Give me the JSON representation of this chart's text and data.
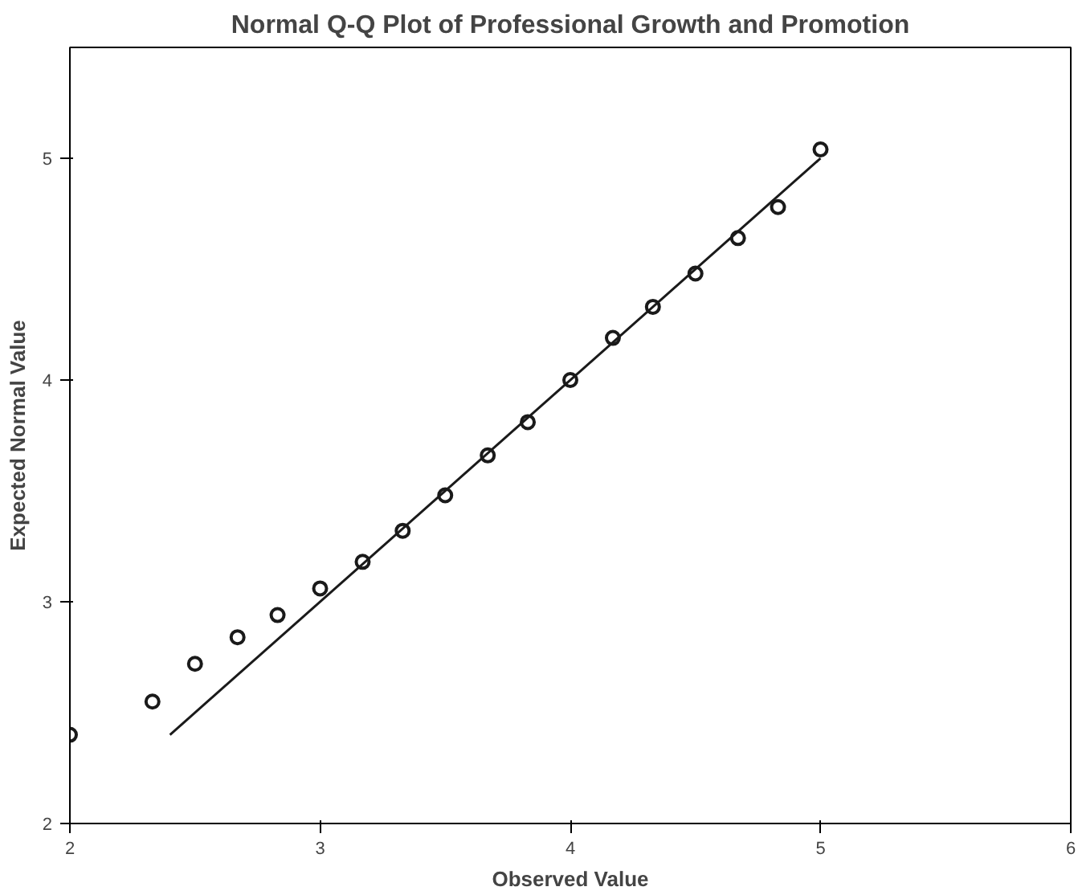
{
  "chart_data": {
    "type": "scatter",
    "title": "Normal Q-Q Plot of Professional Growth and Promotion",
    "xlabel": "Observed Value",
    "ylabel": "Expected Normal Value",
    "xlim": [
      2,
      6
    ],
    "ylim": [
      2,
      5.5
    ],
    "xticks": [
      2,
      3,
      4,
      5,
      6
    ],
    "yticks": [
      2,
      3,
      4,
      5
    ],
    "grid": false,
    "series": [
      {
        "marker": "circle",
        "color": "#1a1a1a",
        "x": [
          2,
          2.33,
          2.5,
          2.67,
          2.83,
          3,
          3.17,
          3.33,
          3.5,
          3.67,
          3.83,
          4,
          4.17,
          4.33,
          4.5,
          4.67,
          4.83,
          5
        ],
        "values": [
          2.4,
          2.55,
          2.72,
          2.84,
          2.94,
          3.06,
          3.18,
          3.32,
          3.48,
          3.66,
          3.81,
          4.0,
          4.19,
          4.33,
          4.48,
          4.64,
          4.78,
          5.04
        ]
      },
      {
        "type": "line",
        "color": "#1a1a1a",
        "x": [
          2.4,
          5.0
        ],
        "values": [
          2.4,
          5.0
        ]
      }
    ]
  }
}
